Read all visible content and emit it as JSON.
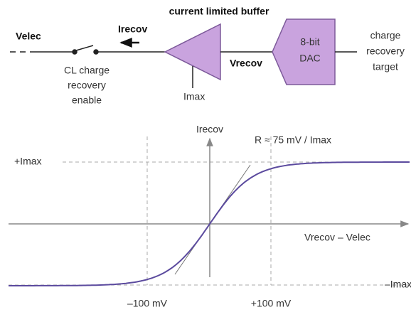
{
  "schematic": {
    "input_label": "Velec",
    "switch_label": [
      "CL charge",
      "recovery",
      "enable"
    ],
    "current_label": "Irecov",
    "buffer_title": "current limited buffer",
    "buffer_limit_label": "Imax",
    "node_label": "Vrecov",
    "dac_label": [
      "8-bit",
      "DAC"
    ],
    "target_label": [
      "charge",
      "recovery",
      "target"
    ]
  },
  "graph": {
    "y_axis_label": "Irecov",
    "x_axis_label": "Vrecov – Velec",
    "slope_label": "R ≈ 75 mV / Imax",
    "upper_level_label": "+Imax",
    "lower_level_label": "–Imax",
    "left_marker_label": "–100 mV",
    "right_marker_label": "+100 mV"
  }
}
